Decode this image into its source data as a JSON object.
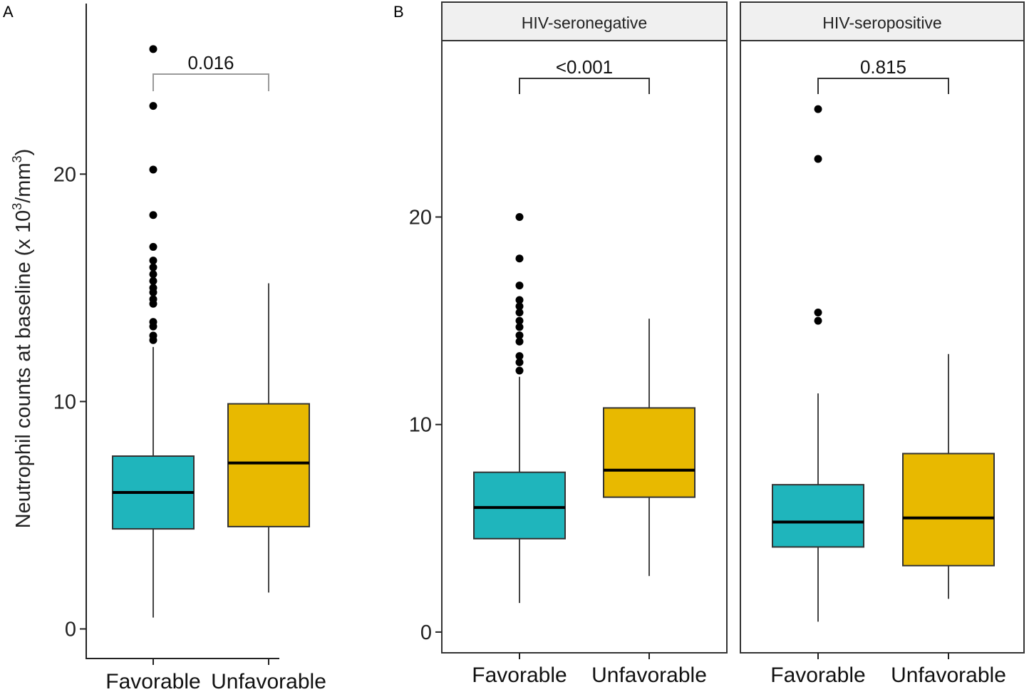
{
  "figure": {
    "panel_a_label": "A",
    "panel_b_label": "B",
    "ylabel_main": "Neutrophil counts at baseline (x 10",
    "ylabel_sup1": "3",
    "ylabel_mid": "/mm",
    "ylabel_sup2": "3",
    "ylabel_end": ")"
  },
  "colors": {
    "favorable": "#1FB5BC",
    "unfavorable": "#E8B900",
    "strip_bg": "#F0F0F0"
  },
  "chart_data": [
    {
      "type": "box",
      "panel": "A",
      "title": "",
      "ylabel": "Neutrophil counts at baseline (x 10^3/mm^3)",
      "categories": [
        "Favorable",
        "Unfavorable"
      ],
      "ylim": [
        -1.3,
        27.5
      ],
      "yticks": [
        0,
        10,
        20
      ],
      "yticklabels": [
        "0",
        "10",
        "20"
      ],
      "boxes": [
        {
          "category": "Favorable",
          "whisker_low": 0.5,
          "q1": 4.4,
          "median": 6.0,
          "q3": 7.6,
          "whisker_high": 12.4,
          "outliers": [
            12.7,
            12.9,
            13.3,
            13.5,
            14.3,
            14.5,
            14.8,
            15.0,
            15.3,
            15.6,
            15.9,
            16.2,
            16.8,
            18.2,
            20.2,
            23.0,
            25.5
          ]
        },
        {
          "category": "Unfavorable",
          "whisker_low": 1.6,
          "q1": 4.5,
          "median": 7.3,
          "q3": 9.9,
          "whisker_high": 15.2,
          "outliers": []
        }
      ],
      "comparison": {
        "label": "0.016",
        "y": 25.4
      }
    },
    {
      "type": "box",
      "panel": "B",
      "title": "HIV-seronegative",
      "categories": [
        "Favorable",
        "Unfavorable"
      ],
      "ylim": [
        -1.0,
        28.5
      ],
      "yticks": [
        0,
        10,
        20
      ],
      "yticklabels": [
        "0",
        "10",
        "20"
      ],
      "boxes": [
        {
          "category": "Favorable",
          "whisker_low": 1.4,
          "q1": 4.5,
          "median": 6.0,
          "q3": 7.7,
          "whisker_high": 12.3,
          "outliers": [
            12.6,
            13.0,
            13.3,
            14.0,
            14.3,
            14.7,
            15.0,
            15.4,
            15.7,
            16.0,
            16.7,
            18.0,
            20.0
          ]
        },
        {
          "category": "Unfavorable",
          "whisker_low": 2.7,
          "q1": 6.5,
          "median": 7.8,
          "q3": 10.8,
          "whisker_high": 15.1,
          "outliers": []
        }
      ],
      "comparison": {
        "label": "<0.001",
        "y": 26.5
      }
    },
    {
      "type": "box",
      "panel": "B",
      "title": "HIV-seropositive",
      "categories": [
        "Favorable",
        "Unfavorable"
      ],
      "ylim": [
        -1.0,
        28.5
      ],
      "yticks": [
        0,
        10,
        20
      ],
      "yticklabels": [
        "0",
        "10",
        "20"
      ],
      "boxes": [
        {
          "category": "Favorable",
          "whisker_low": 0.5,
          "q1": 4.1,
          "median": 5.3,
          "q3": 7.1,
          "whisker_high": 11.5,
          "outliers": [
            15.0,
            15.4,
            22.8,
            25.2
          ]
        },
        {
          "category": "Unfavorable",
          "whisker_low": 1.6,
          "q1": 3.2,
          "median": 5.5,
          "q3": 8.6,
          "whisker_high": 13.4,
          "outliers": []
        }
      ],
      "comparison": {
        "label": "0.815",
        "y": 26.5
      }
    }
  ]
}
